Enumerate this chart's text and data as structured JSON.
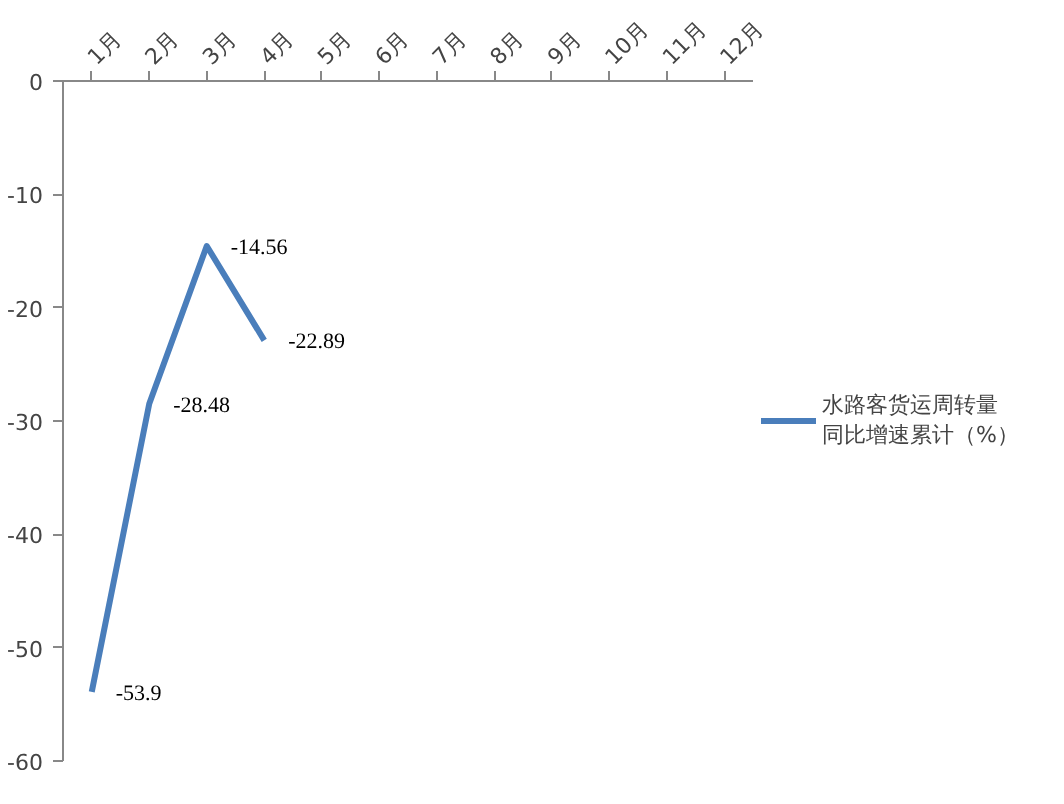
{
  "chart_data": {
    "type": "line",
    "categories": [
      "1月",
      "2月",
      "3月",
      "4月",
      "5月",
      "6月",
      "7月",
      "8月",
      "9月",
      "10月",
      "11月",
      "12月"
    ],
    "series": [
      {
        "name": "水路客货运周转量同比增速累计（%）",
        "color": "#4a7ebb",
        "values": [
          -53.9,
          -28.48,
          -14.56,
          -22.89,
          null,
          null,
          null,
          null,
          null,
          null,
          null,
          null
        ]
      }
    ],
    "ylim": [
      -60,
      0
    ],
    "yticks": [
      0,
      -10,
      -20,
      -30,
      -40,
      -50,
      -60
    ],
    "data_labels": true,
    "grid": false,
    "legend": "right",
    "marker": "none",
    "line_style": "solid"
  }
}
